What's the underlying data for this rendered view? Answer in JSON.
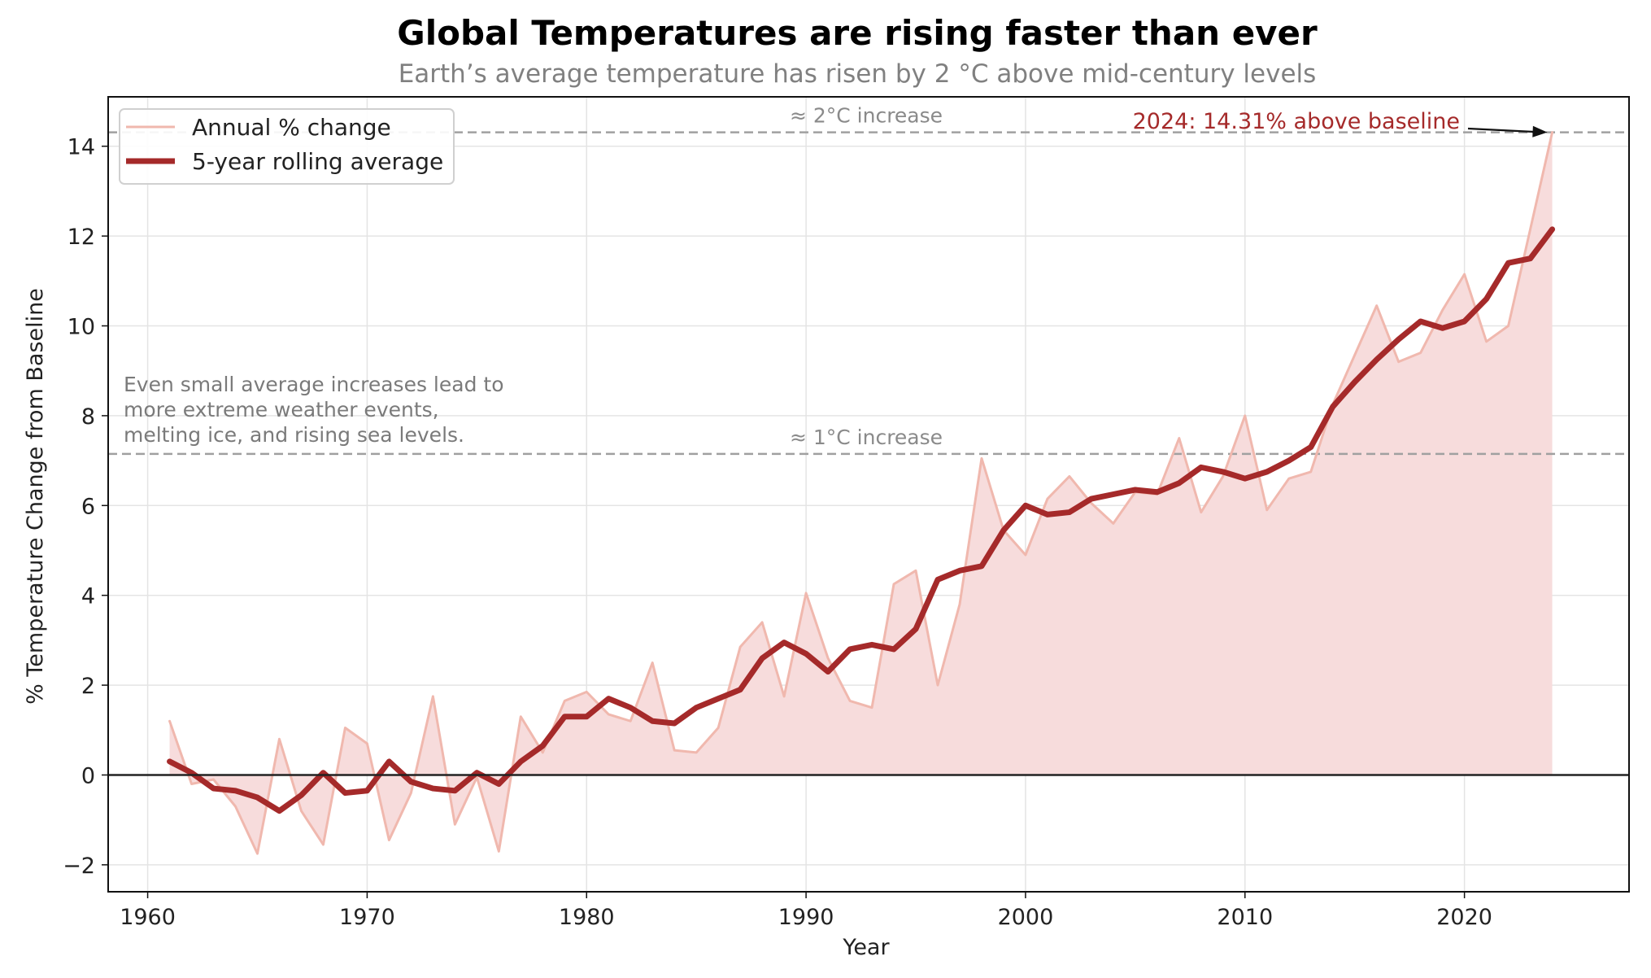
{
  "chart_data": {
    "type": "line",
    "title": "Global Temperatures are rising faster than ever",
    "subtitle": "Earth’s average temperature has risen by 2 °C above mid-century levels",
    "xlabel": "Year",
    "ylabel": "% Temperature Change from Baseline",
    "xlim": [
      1958.2,
      1927.5
    ],
    "ylim": [
      -2.6,
      15.1
    ],
    "xticks": [
      1960,
      1970,
      1980,
      1990,
      2000,
      2010,
      2020
    ],
    "yticks": [
      -2,
      0,
      2,
      4,
      6,
      8,
      10,
      12,
      14
    ],
    "grid": true,
    "legend_position": "top-left",
    "x": [
      1961,
      1962,
      1963,
      1964,
      1965,
      1966,
      1967,
      1968,
      1969,
      1970,
      1971,
      1972,
      1973,
      1974,
      1975,
      1976,
      1977,
      1978,
      1979,
      1980,
      1981,
      1982,
      1983,
      1984,
      1985,
      1986,
      1987,
      1988,
      1989,
      1990,
      1991,
      1992,
      1993,
      1994,
      1995,
      1996,
      1997,
      1998,
      1999,
      2000,
      2001,
      2002,
      2003,
      2004,
      2005,
      2006,
      2007,
      2008,
      2009,
      2010,
      2011,
      2012,
      2013,
      2014,
      2015,
      2016,
      2017,
      2018,
      2019,
      2020,
      2021,
      2022,
      2023,
      2024
    ],
    "series": [
      {
        "name": "Annual % change",
        "color": "#f0b8ae",
        "values": [
          1.2,
          -0.2,
          -0.1,
          -0.7,
          -1.75,
          0.8,
          -0.8,
          -1.55,
          1.05,
          0.7,
          -1.45,
          -0.4,
          1.75,
          -1.1,
          -0.05,
          -1.7,
          1.3,
          0.5,
          1.65,
          1.85,
          1.35,
          1.2,
          2.5,
          0.55,
          0.5,
          1.05,
          2.85,
          3.4,
          1.75,
          4.05,
          2.6,
          1.65,
          1.5,
          4.25,
          4.55,
          2.0,
          3.8,
          7.05,
          5.45,
          4.9,
          6.15,
          6.65,
          6.05,
          5.6,
          6.3,
          6.25,
          7.5,
          5.85,
          6.65,
          8.0,
          5.9,
          6.6,
          6.75,
          8.25,
          9.35,
          10.45,
          9.2,
          9.4,
          10.35,
          11.15,
          9.65,
          10.0,
          12.15,
          14.31
        ]
      },
      {
        "name": "5-year rolling average",
        "color": "#a52a2a",
        "values": [
          0.3,
          0.05,
          -0.3,
          -0.35,
          -0.5,
          -0.8,
          -0.45,
          0.05,
          -0.4,
          -0.35,
          0.3,
          -0.15,
          -0.3,
          -0.35,
          0.05,
          -0.2,
          0.3,
          0.65,
          1.3,
          1.3,
          1.7,
          1.5,
          1.2,
          1.15,
          1.5,
          1.7,
          1.9,
          2.6,
          2.95,
          2.7,
          2.3,
          2.8,
          2.9,
          2.8,
          3.25,
          4.35,
          4.55,
          4.65,
          5.45,
          6.0,
          5.8,
          5.85,
          6.15,
          6.25,
          6.35,
          6.3,
          6.5,
          6.85,
          6.75,
          6.6,
          6.75,
          7.0,
          7.3,
          8.2,
          8.75,
          9.25,
          9.7,
          10.1,
          9.95,
          10.1,
          10.6,
          11.4,
          11.5,
          12.15
        ]
      }
    ],
    "reference_lines": [
      {
        "value": 14.31,
        "label": "≈ 2°C increase",
        "color": "#a0a0a0"
      },
      {
        "value": 7.15,
        "label": "≈ 1°C increase",
        "color": "#a0a0a0"
      }
    ],
    "annotations": {
      "note_lines": [
        "Even small average increases lead to",
        "more extreme weather events,",
        "melting ice, and rising sea levels."
      ],
      "callout_text": "2024: 14.31% above baseline",
      "callout_x": 2024,
      "callout_y": 14.31
    },
    "fill_color": "#f7dcdc",
    "zero_line_color": "#222222"
  }
}
